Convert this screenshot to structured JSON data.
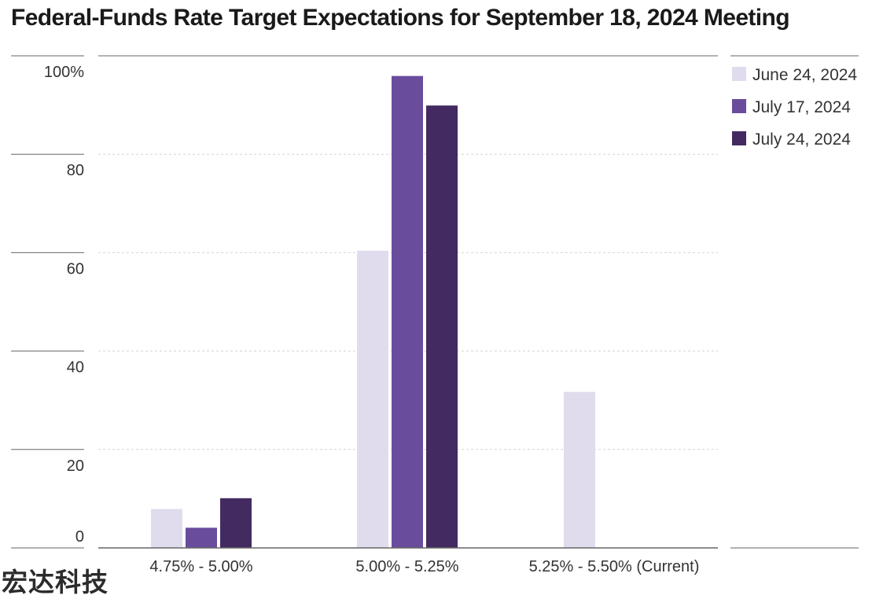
{
  "chart_data": {
    "type": "bar",
    "title": "Federal-Funds Rate Target Expectations for September 18, 2024 Meeting",
    "categories": [
      "4.75% - 5.00%",
      "5.00% - 5.25%",
      "5.25% - 5.50% (Current)"
    ],
    "series": [
      {
        "name": "June 24, 2024",
        "color": "#e1dbee",
        "values": [
          7.9,
          60.4,
          31.7
        ]
      },
      {
        "name": "July 17, 2024",
        "color": "#6a4c9c",
        "values": [
          4.1,
          95.9,
          0
        ]
      },
      {
        "name": "July 24, 2024",
        "color": "#432a60",
        "values": [
          10.1,
          89.9,
          0
        ]
      }
    ],
    "yticks": [
      "0",
      "20",
      "40",
      "60",
      "80",
      "100%"
    ],
    "ylim": [
      0,
      100
    ],
    "grid": true,
    "legend_position": "top-right"
  },
  "watermark": "宏达科技"
}
